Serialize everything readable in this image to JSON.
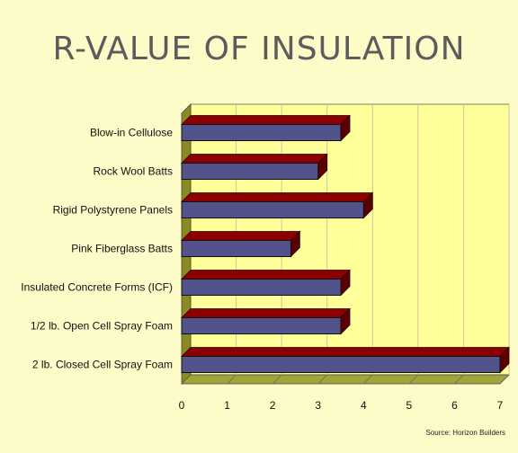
{
  "chart_data": {
    "type": "bar",
    "orientation": "horizontal",
    "style": "3d",
    "title": "R-VALUE OF INSULATION",
    "xlabel": "",
    "ylabel": "",
    "source": "Source: Horizon Builders",
    "categories": [
      "Blow-in Cellulose",
      "Rock Wool Batts",
      "Rigid Polystyrene Panels",
      "Pink Fiberglass Batts",
      "Insulated Concrete Forms (ICF)",
      "1/2 lb. Open Cell Spray Foam",
      "2 lb. Closed Cell Spray Foam"
    ],
    "values": [
      3.5,
      3.0,
      4.0,
      2.4,
      3.5,
      3.5,
      7.0
    ],
    "xlim": [
      0,
      7
    ],
    "xticks": [
      "0",
      "1",
      "2",
      "3",
      "4",
      "5",
      "6",
      "7"
    ],
    "grid": true,
    "legend": "none",
    "colors": {
      "background": "#fdfbc8",
      "plot_area": "#ffff99",
      "wall": "#8a8a20",
      "floor": "#a3a33a",
      "bar_front": "#53538c",
      "bar_top": "#8b0000",
      "bar_side": "#5a0000",
      "grid": "#c9c6a0"
    }
  }
}
